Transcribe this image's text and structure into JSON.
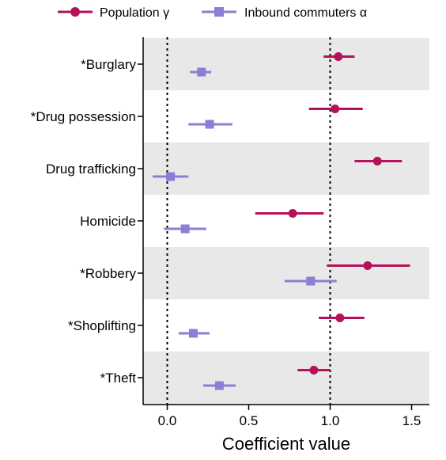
{
  "chart_data": {
    "type": "scatter",
    "subtype": "dot-whisker",
    "xlabel": "Coefficient value",
    "xlim": [
      -0.15,
      1.6
    ],
    "x_ticks": [
      0.0,
      0.5,
      1.0,
      1.5
    ],
    "x_tick_labels": [
      "0.0",
      "0.5",
      "1.0",
      "1.5"
    ],
    "reference_lines": [
      0.0,
      1.0
    ],
    "categories": [
      "*Burglary",
      "*Drug possession",
      "Drug trafficking",
      "Homicide",
      "*Robbery",
      "*Shoplifting",
      "*Theft"
    ],
    "shaded_bands": "alternating",
    "legend_position": "top",
    "series": [
      {
        "name": "Population γ",
        "marker": "circle",
        "color": "#b5115a",
        "values": [
          1.05,
          1.03,
          1.29,
          0.77,
          1.23,
          1.06,
          0.9
        ],
        "ci_low": [
          0.96,
          0.87,
          1.15,
          0.54,
          0.98,
          0.93,
          0.8
        ],
        "ci_high": [
          1.15,
          1.2,
          1.44,
          0.96,
          1.49,
          1.21,
          1.0
        ]
      },
      {
        "name": "Inbound commuters α",
        "marker": "square",
        "color": "#8a7fd6",
        "values": [
          0.21,
          0.26,
          0.02,
          0.11,
          0.88,
          0.16,
          0.32
        ],
        "ci_low": [
          0.14,
          0.13,
          -0.09,
          -0.02,
          0.72,
          0.07,
          0.22
        ],
        "ci_high": [
          0.27,
          0.4,
          0.13,
          0.24,
          1.04,
          0.26,
          0.42
        ]
      }
    ]
  }
}
